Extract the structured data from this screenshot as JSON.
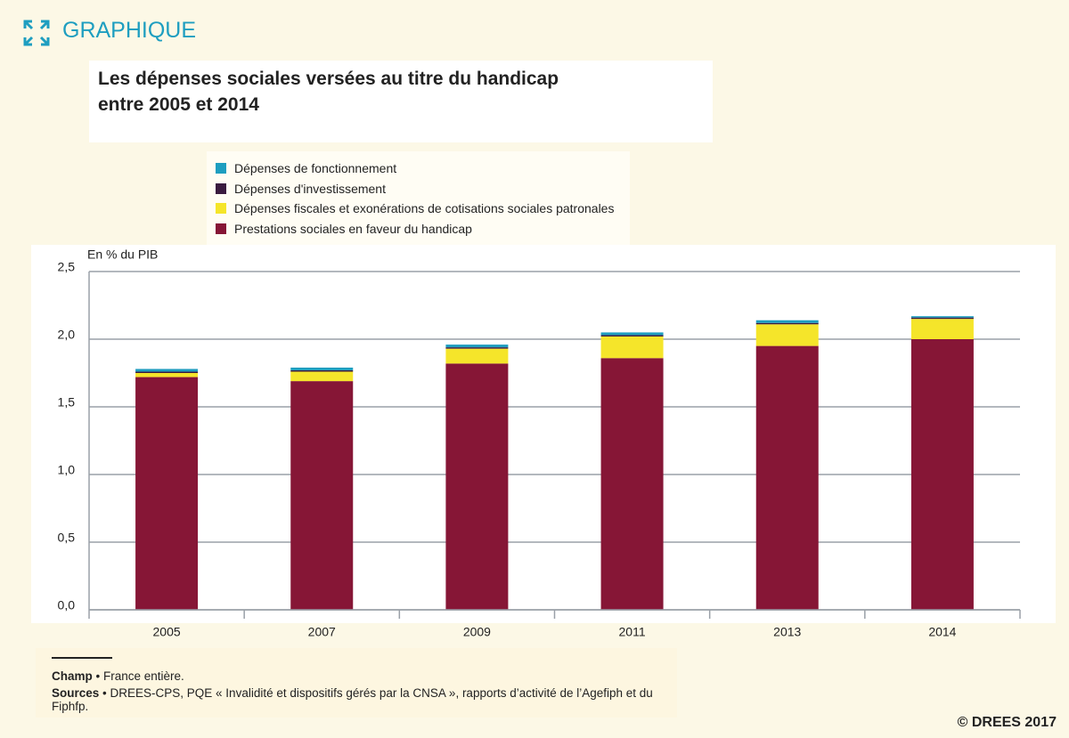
{
  "header": {
    "label": "GRAPHIQUE"
  },
  "chart_data": {
    "type": "stacked-bar",
    "title": [
      "Les dépenses sociales versées au titre du handicap",
      "entre 2005 et 2014"
    ],
    "y_label": "En % du PIB",
    "categories": [
      "2005",
      "2007",
      "2009",
      "2011",
      "2013",
      "2014"
    ],
    "series": [
      {
        "name": "Dépenses de fonctionnement",
        "color": "#1e9ec0",
        "values": [
          0.02,
          0.02,
          0.02,
          0.02,
          0.02,
          0.01
        ]
      },
      {
        "name": "Dépenses d'investissement",
        "color": "#3a1b3f",
        "values": [
          0.01,
          0.01,
          0.01,
          0.01,
          0.01,
          0.01
        ]
      },
      {
        "name": "Dépenses fiscales et exonérations de cotisations sociales patronales",
        "color": "#f5e52a",
        "values": [
          0.03,
          0.07,
          0.11,
          0.16,
          0.16,
          0.15
        ]
      },
      {
        "name": "Prestations sociales en faveur du handicap",
        "color": "#861636",
        "values": [
          1.72,
          1.69,
          1.82,
          1.86,
          1.95,
          2.0
        ]
      }
    ],
    "ylim": [
      0,
      2.5
    ],
    "yticks": [
      {
        "value": 0,
        "label": "0,0"
      },
      {
        "value": 0.5,
        "label": "0,5"
      },
      {
        "value": 1,
        "label": "1,0"
      },
      {
        "value": 1.5,
        "label": "1,5"
      },
      {
        "value": 2,
        "label": "2,0"
      },
      {
        "value": 2.5,
        "label": "2,5"
      }
    ],
    "grid": true
  },
  "notes": {
    "champ_label": "Champ",
    "champ_text": "• France entière.",
    "sources_label": "Sources",
    "sources_text": "• DREES-CPS, PQE « Invalidité et dispositifs gérés par la CNSA », rapports d’activité de l’Agefiph et du Fiphfp."
  },
  "copyright": "© DREES 2017"
}
